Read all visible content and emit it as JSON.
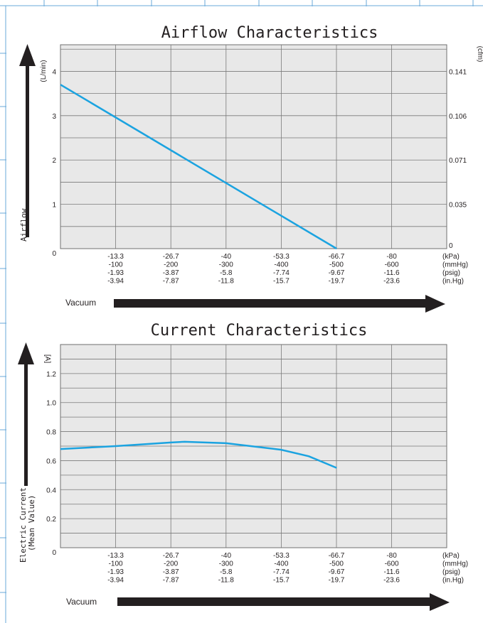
{
  "colors": {
    "plot_bg": "#e8e8e8",
    "grid": "#7a7a7a",
    "series": "#1ba3e0",
    "arrow": "#231f20",
    "edge": "#6aa8d8"
  },
  "x_axis_rows": [
    {
      "unit": "(kPa)",
      "ticks": [
        "-13.3",
        "-26.7",
        "-40",
        "-53.3",
        "-66.7",
        "-80"
      ]
    },
    {
      "unit": "(mmHg)",
      "ticks": [
        "-100",
        "-200",
        "-300",
        "-400",
        "-500",
        "-600"
      ]
    },
    {
      "unit": "(psig)",
      "ticks": [
        "-1.93",
        "-3.87",
        "-5.8",
        "-7.74",
        "-9.67",
        "-11.6"
      ]
    },
    {
      "unit": "(in.Hg)",
      "ticks": [
        "-3.94",
        "-7.87",
        "-11.8",
        "-15.7",
        "-19.7",
        "-23.6"
      ]
    }
  ],
  "vacuum_label": "Vacuum",
  "chart_data": [
    {
      "type": "line",
      "title": "Airflow Characteristics",
      "xlabel": "Vacuum",
      "ylabel": "Airflow",
      "y_unit": "(L/min)",
      "y2_unit": "(cfm)",
      "origin_label": "0",
      "x_unit": "kPa",
      "xlim": [
        0,
        -93.3
      ],
      "ylim": [
        0,
        4.6
      ],
      "y_ticks": [
        "1",
        "2",
        "3",
        "4"
      ],
      "y2_ticks": [
        "0",
        "0.035",
        "0.071",
        "0.106",
        "0.141"
      ],
      "grid": true,
      "series": [
        {
          "x": [
            0,
            -66.7
          ],
          "y": [
            3.7,
            0
          ]
        }
      ]
    },
    {
      "type": "line",
      "title": "Current Characteristics",
      "xlabel": "Vacuum",
      "ylabel": "Electric Current",
      "ylabel2": "(Mean Value)",
      "y_unit": "[A]",
      "origin_label": "0",
      "x_unit": "kPa",
      "xlim": [
        0,
        -93.3
      ],
      "ylim": [
        0,
        1.4
      ],
      "y_ticks": [
        "0.2",
        "0.4",
        "0.6",
        "0.8",
        "1.0",
        "1.2"
      ],
      "grid": true,
      "series": [
        {
          "x": [
            0,
            -13.3,
            -26.7,
            -30,
            -40,
            -53.3,
            -60,
            -66.7
          ],
          "y": [
            0.68,
            0.7,
            0.725,
            0.73,
            0.72,
            0.675,
            0.63,
            0.55
          ]
        }
      ]
    }
  ]
}
